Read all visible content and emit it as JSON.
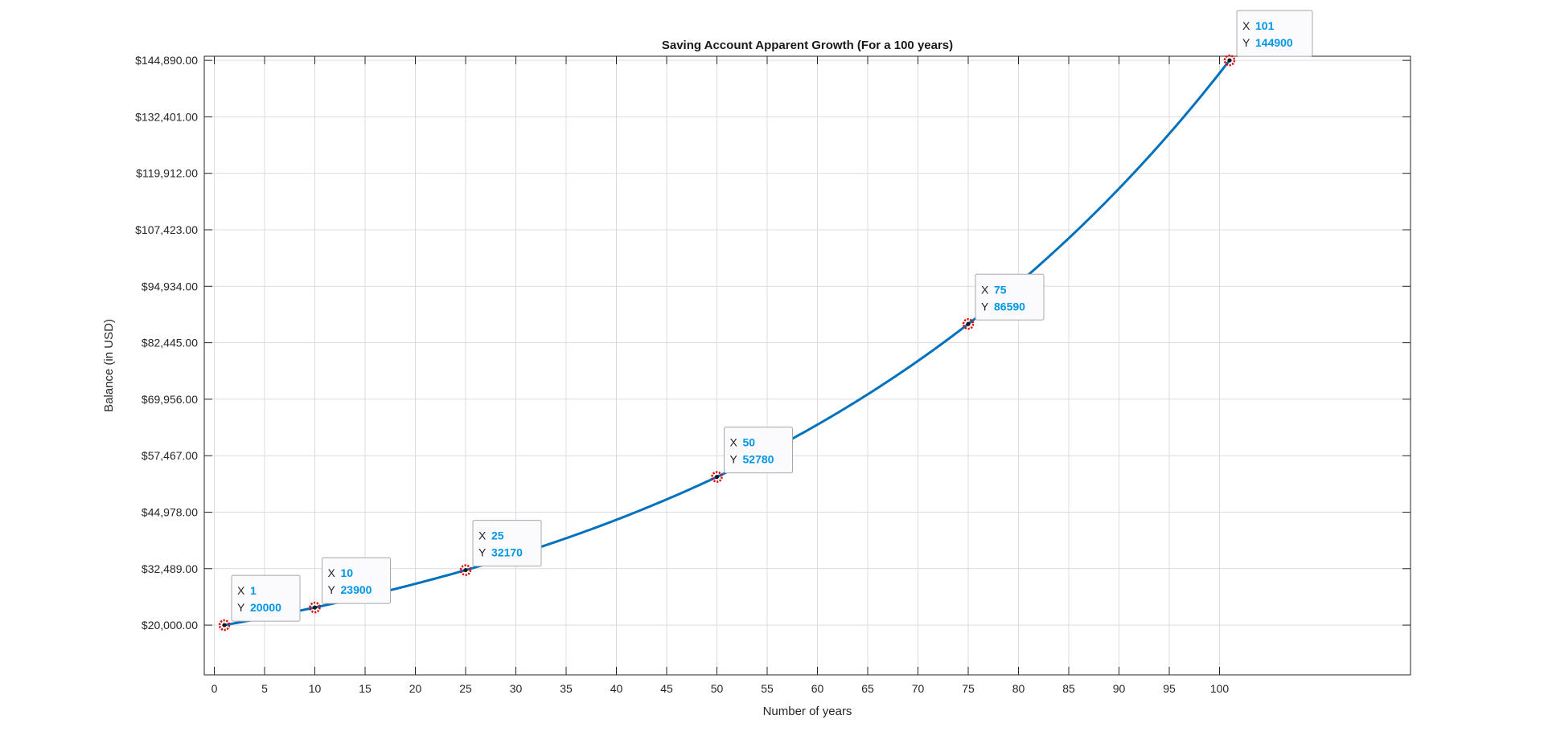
{
  "chart_data": {
    "type": "line",
    "title": "Saving Account Apparent Growth (For a 100 years)",
    "xlabel": "Number of years",
    "ylabel": "Balance (in USD)",
    "xlim": [
      -1,
      119
    ],
    "ylim": [
      9000,
      145800
    ],
    "xticks": [
      "0",
      "5",
      "10",
      "15",
      "20",
      "25",
      "30",
      "35",
      "40",
      "45",
      "50",
      "55",
      "60",
      "65",
      "70",
      "75",
      "80",
      "85",
      "90",
      "95",
      "100"
    ],
    "yticks": [
      "$20,000.00",
      "$32,489.00",
      "$44,978.00",
      "$57,467.00",
      "$69,956.00",
      "$82,445.00",
      "$94,934.00",
      "$107,423.00",
      "$119,912.00",
      "$132,401.00",
      "$144,890.00"
    ],
    "grid": true,
    "series": [
      {
        "name": "",
        "start_value": 20000,
        "end_value": 144900,
        "x_start": 1,
        "x_end": 101,
        "color": "#0072bd"
      }
    ],
    "datatips": [
      {
        "x": 1,
        "y": 20000,
        "x_label": "X",
        "y_label": "Y",
        "x_text": "1",
        "y_text": "20000"
      },
      {
        "x": 10,
        "y": 23900,
        "x_label": "X",
        "y_label": "Y",
        "x_text": "10",
        "y_text": "23900"
      },
      {
        "x": 25,
        "y": 32170,
        "x_label": "X",
        "y_label": "Y",
        "x_text": "25",
        "y_text": "32170"
      },
      {
        "x": 50,
        "y": 52780,
        "x_label": "X",
        "y_label": "Y",
        "x_text": "50",
        "y_text": "52780"
      },
      {
        "x": 75,
        "y": 86590,
        "x_label": "X",
        "y_label": "Y",
        "x_text": "75",
        "y_text": "86590"
      },
      {
        "x": 101,
        "y": 144900,
        "x_label": "X",
        "y_label": "Y",
        "x_text": "101",
        "y_text": "144900"
      }
    ],
    "colors": {
      "line": "#0072bd",
      "datatip_value": "#0096e6",
      "marker": "#e00000",
      "grid": "#dcdcdc"
    }
  }
}
